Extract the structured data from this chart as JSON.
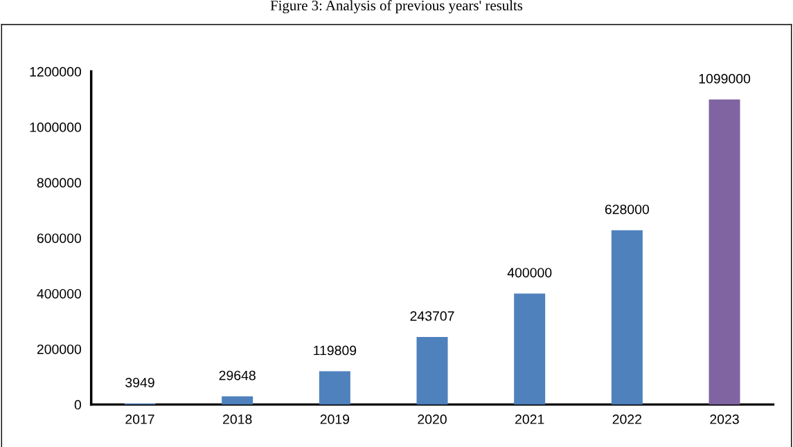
{
  "chart_data": {
    "type": "bar",
    "title": "Figure 3: Analysis of previous years' results",
    "categories": [
      "2017",
      "2018",
      "2019",
      "2020",
      "2021",
      "2022",
      "2023"
    ],
    "values": [
      3949,
      29648,
      119809,
      243707,
      400000,
      628000,
      1099000
    ],
    "colors": [
      "#4f81bd",
      "#4f81bd",
      "#4f81bd",
      "#4f81bd",
      "#4f81bd",
      "#4f81bd",
      "#8064a2"
    ],
    "ylim": [
      0,
      1200000
    ],
    "yticks": [
      0,
      200000,
      400000,
      600000,
      800000,
      1000000,
      1200000
    ],
    "grid": false,
    "data_labels": true
  }
}
